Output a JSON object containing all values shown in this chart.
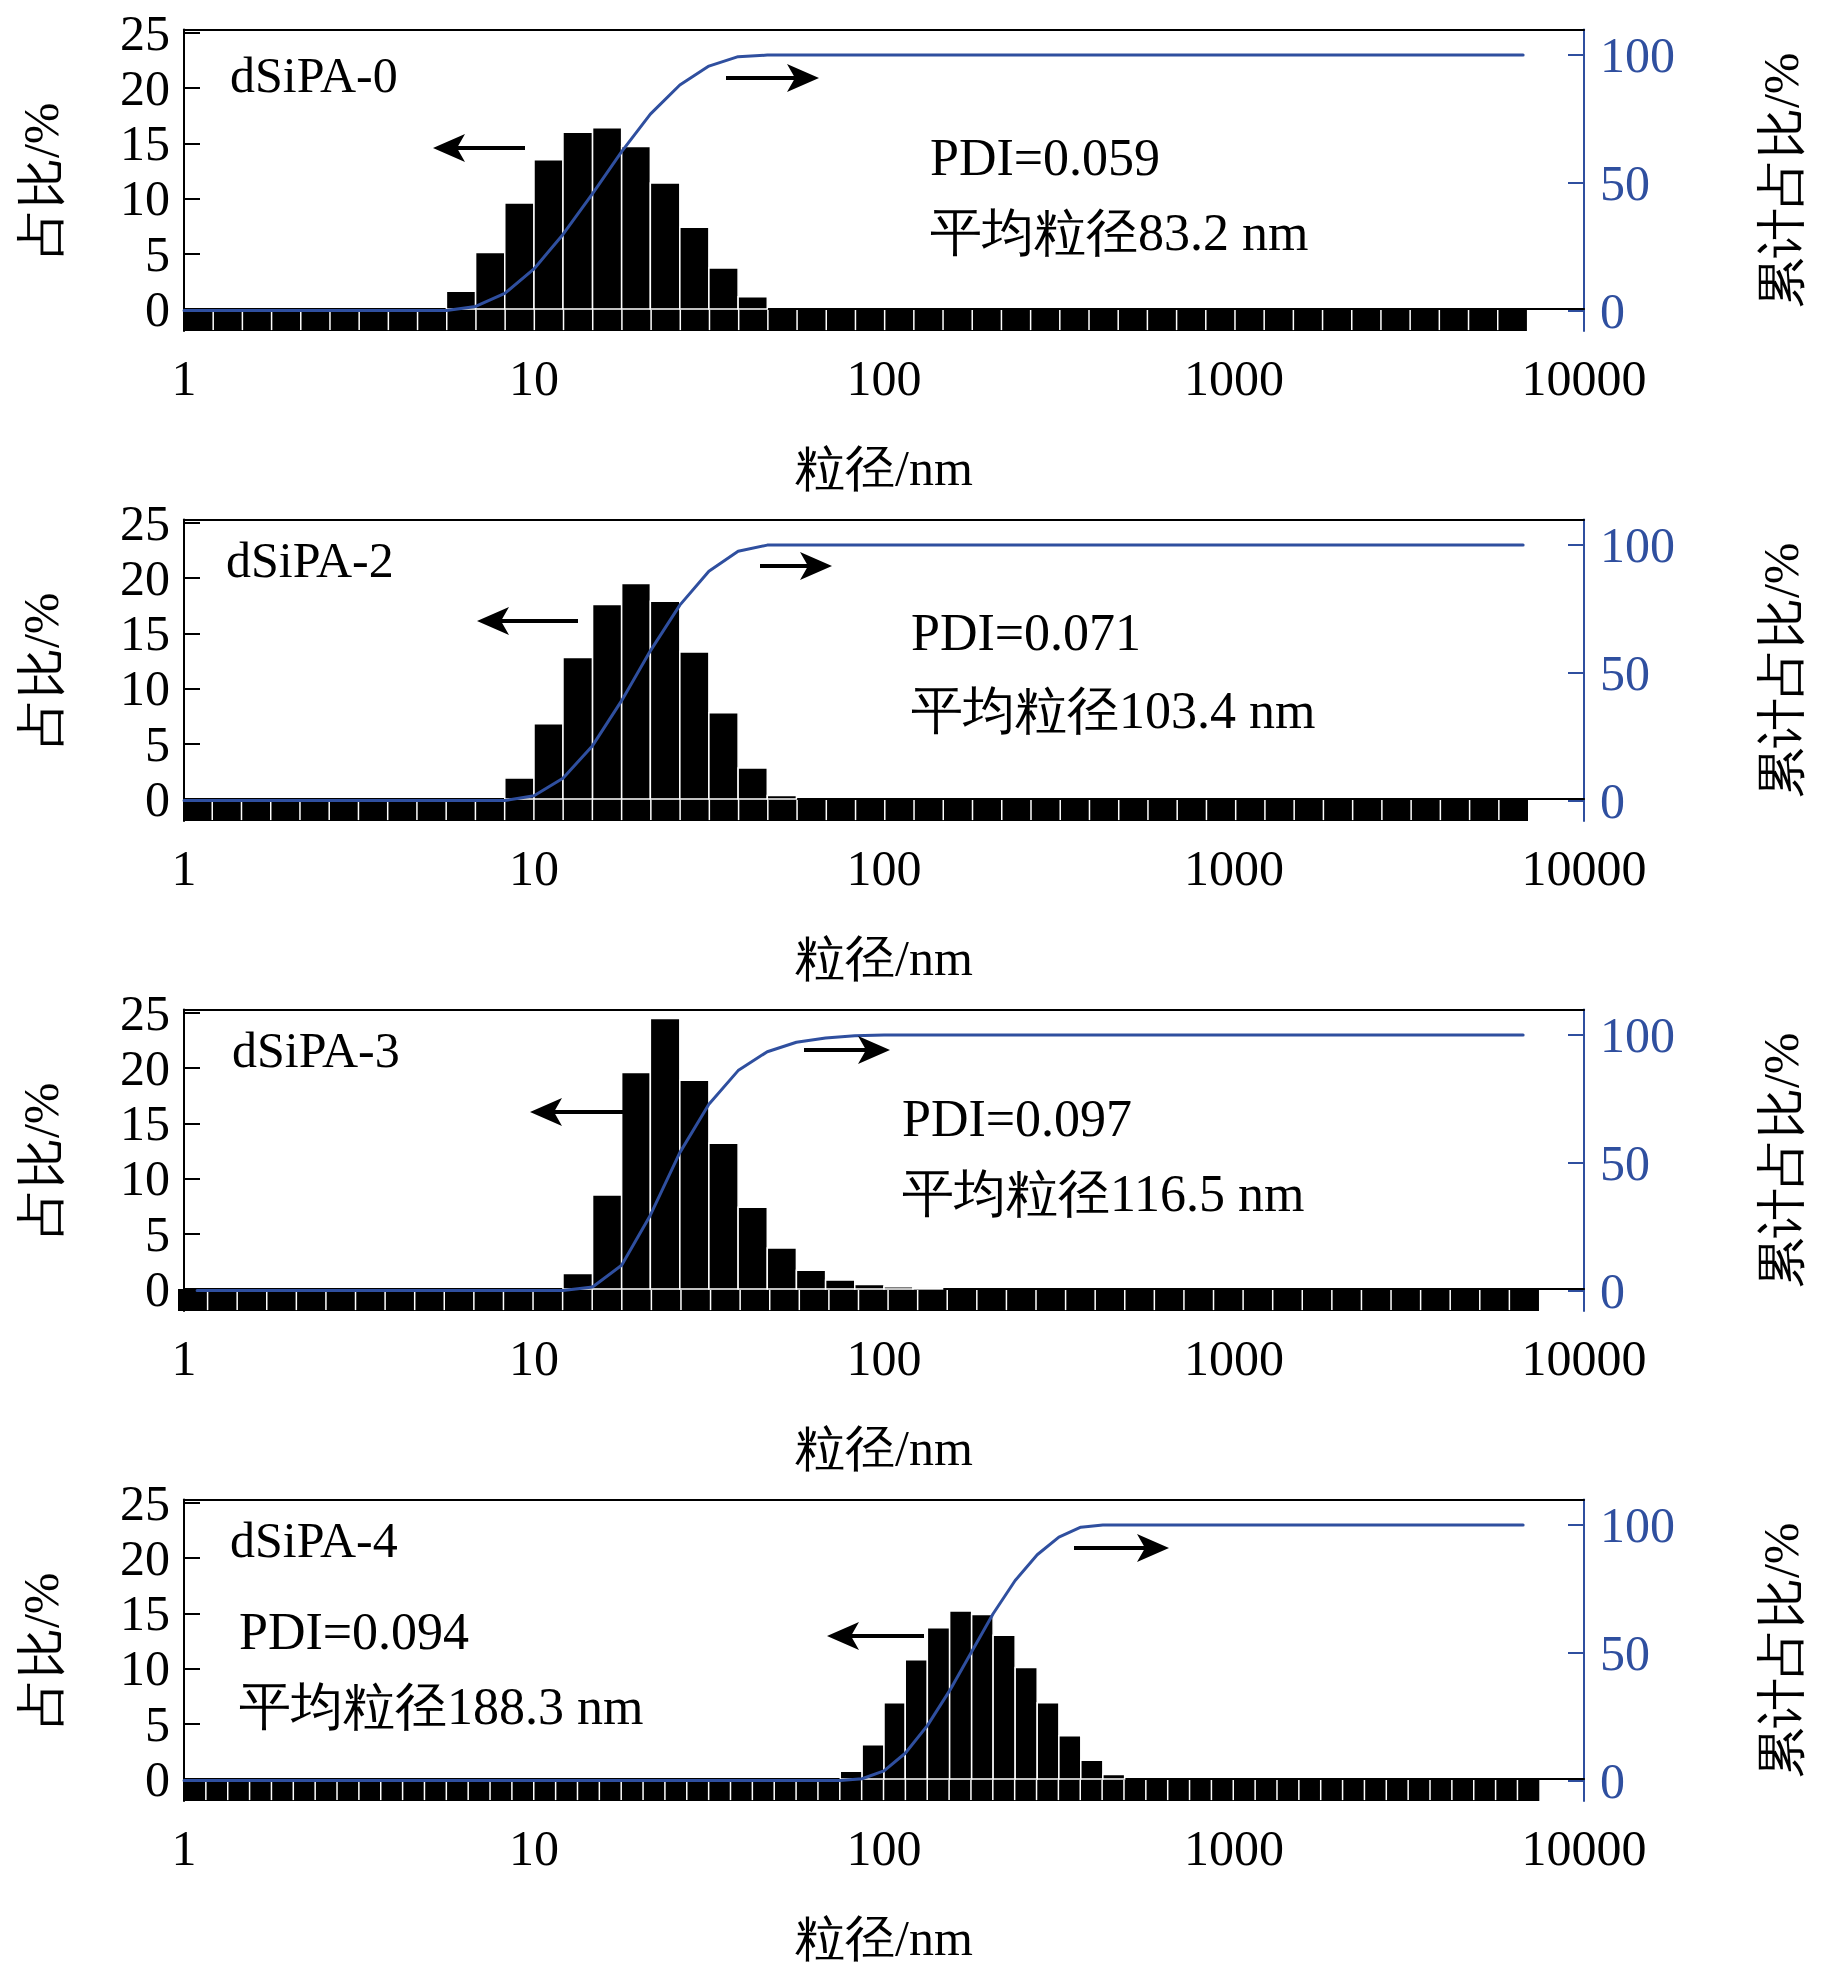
{
  "chart_data": [
    {
      "type": "histogram",
      "title": "dSiPA-0",
      "xlabel": "粒径/nm",
      "ylabel": "占比/%",
      "y2label": "累计占比/%",
      "annotations": [
        "PDI=0.059",
        "平均粒径83.2 nm"
      ],
      "log": "x",
      "grid": false,
      "color": "#000000",
      "bins": [
        5.62,
        6.81,
        8.25,
        10,
        12.1,
        14.7,
        17.8,
        21.5,
        26.1,
        31.6,
        38.3,
        46.4
      ],
      "values": [
        1.6,
        5.1,
        9.6,
        13.5,
        16.0,
        16.4,
        14.7,
        11.4,
        7.4,
        3.7,
        1.1
      ],
      "series": [
        {
          "type": "line",
          "axis": "y2",
          "color": "#2f4f9f",
          "x": [
            1,
            5.62,
            6.81,
            8.25,
            10,
            12.1,
            14.7,
            17.8,
            21.5,
            26.1,
            31.6,
            38.3,
            46.4,
            6700
          ],
          "values": [
            0,
            0,
            1.6,
            6.7,
            16.3,
            29.8,
            45.8,
            62.2,
            76.9,
            88.3,
            95.7,
            99.4,
            100,
            100
          ]
        }
      ],
      "xlim": [
        1,
        10000
      ],
      "xticks": [
        1,
        10,
        100,
        1000,
        10000
      ],
      "ylim": [
        -2,
        25.3
      ],
      "yticks": [
        0,
        5,
        10,
        15,
        20,
        25
      ],
      "y2lim": [
        -8,
        110
      ],
      "y2ticks": [
        0,
        50,
        100
      ]
    },
    {
      "type": "histogram",
      "title": "dSiPA-2",
      "xlabel": "粒径/nm",
      "ylabel": "占比/%",
      "y2label": "累计占比/%",
      "annotations": [
        "PDI=0.071",
        "平均粒径103.4 nm"
      ],
      "log": "x",
      "grid": false,
      "color": "#000000",
      "bins": [
        8.25,
        10,
        12.1,
        14.7,
        17.8,
        21.5,
        26.1,
        31.6,
        38.3,
        46.4,
        56.2
      ],
      "values": [
        1.9,
        6.8,
        12.8,
        17.6,
        19.5,
        17.9,
        13.3,
        7.8,
        2.8,
        0.3
      ],
      "series": [
        {
          "type": "line",
          "axis": "y2",
          "color": "#2f4f9f",
          "x": [
            1,
            8.25,
            10,
            12.1,
            14.7,
            17.8,
            21.5,
            26.1,
            31.6,
            38.3,
            46.4,
            56.2,
            6700
          ],
          "values": [
            0,
            0,
            1.9,
            8.7,
            21.5,
            39.1,
            58.6,
            76.5,
            89.8,
            97.6,
            100,
            100,
            100
          ]
        }
      ],
      "xlim": [
        1,
        10000
      ],
      "xticks": [
        1,
        10,
        100,
        1000,
        10000
      ],
      "ylim": [
        -2,
        25.3
      ],
      "yticks": [
        0,
        5,
        10,
        15,
        20,
        25
      ],
      "y2lim": [
        -8,
        110
      ],
      "y2ticks": [
        0,
        50,
        100
      ]
    },
    {
      "type": "histogram",
      "title": "dSiPA-3",
      "xlabel": "粒径/nm",
      "ylabel": "占比/%",
      "y2label": "累计占比/%",
      "annotations": [
        "PDI=0.097",
        "平均粒径116.5 nm"
      ],
      "log": "x",
      "grid": false,
      "color": "#000000",
      "bins": [
        12.1,
        14.7,
        17.8,
        21.5,
        26.1,
        31.6,
        38.3,
        46.4,
        56.2,
        68.1,
        82.5,
        100,
        121,
        147
      ],
      "values": [
        1.4,
        8.5,
        19.6,
        24.5,
        18.9,
        13.2,
        7.4,
        3.7,
        1.7,
        0.8,
        0.4,
        0.2,
        0.1
      ],
      "series": [
        {
          "type": "line",
          "axis": "y2",
          "color": "#2f4f9f",
          "x": [
            1.09,
            12.1,
            14.7,
            17.8,
            21.5,
            26.1,
            31.6,
            38.3,
            46.4,
            56.2,
            68.1,
            82.5,
            100,
            6700
          ],
          "values": [
            0,
            0,
            1.4,
            9.9,
            29.5,
            54.0,
            72.9,
            86.1,
            93.5,
            97.2,
            98.9,
            99.7,
            100,
            100
          ]
        }
      ],
      "xlim": [
        1,
        10000
      ],
      "xticks": [
        1,
        10,
        100,
        1000,
        10000
      ],
      "ylim": [
        -2,
        25.3
      ],
      "yticks": [
        0,
        5,
        10,
        15,
        20,
        25
      ],
      "y2lim": [
        -8,
        110
      ],
      "y2ticks": [
        0,
        50,
        100
      ]
    },
    {
      "type": "histogram",
      "title": "dSiPA-4",
      "xlabel": "粒径/nm",
      "ylabel": "占比/%",
      "y2label": "累计占比/%",
      "annotations": [
        "PDI=0.094",
        "平均粒径188.3 nm"
      ],
      "log": "x",
      "grid": false,
      "color": "#000000",
      "bins": [
        75,
        86.6,
        100,
        115,
        133,
        154,
        178,
        205,
        237,
        274,
        316,
        365,
        422,
        487
      ],
      "values": [
        0.7,
        3.1,
        6.9,
        10.8,
        13.7,
        15.2,
        14.9,
        13.0,
        10.1,
        6.9,
        3.9,
        1.7,
        0.4
      ],
      "series": [
        {
          "type": "line",
          "axis": "y2",
          "color": "#2f4f9f",
          "x": [
            1,
            75,
            86.6,
            100,
            115,
            133,
            154,
            178,
            205,
            237,
            274,
            316,
            365,
            422,
            6700
          ],
          "values": [
            0,
            0,
            0.7,
            3.8,
            10.7,
            21.5,
            35.2,
            50.4,
            65.3,
            78.3,
            88.4,
            95.3,
            99.2,
            100,
            100
          ]
        }
      ],
      "xlim": [
        1,
        10000
      ],
      "xticks": [
        1,
        10,
        100,
        1000,
        10000
      ],
      "ylim": [
        -2,
        25.3
      ],
      "yticks": [
        0,
        5,
        10,
        15,
        20,
        25
      ],
      "y2lim": [
        -8,
        110
      ],
      "y2ticks": [
        0,
        50,
        100
      ]
    }
  ]
}
